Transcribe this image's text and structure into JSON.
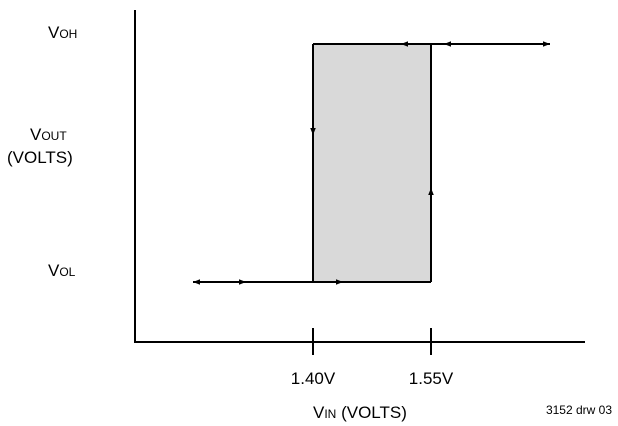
{
  "y_axis": {
    "top_label_main": "V",
    "top_label_sub": "OH",
    "bottom_label_main": "V",
    "bottom_label_sub": "OL",
    "title_line1_main": "V",
    "title_line1_sub": "OUT",
    "title_line2": "(VOLTS)"
  },
  "x_axis": {
    "tick_left": "1.40V",
    "tick_right": "1.55V",
    "title_main": "V",
    "title_sub": "IN",
    "title_rest": " (VOLTS)"
  },
  "drawing_ref": "3152 drw 03",
  "colors": {
    "hysteresis_fill": "#d9d9d9",
    "line": "#000000"
  }
}
